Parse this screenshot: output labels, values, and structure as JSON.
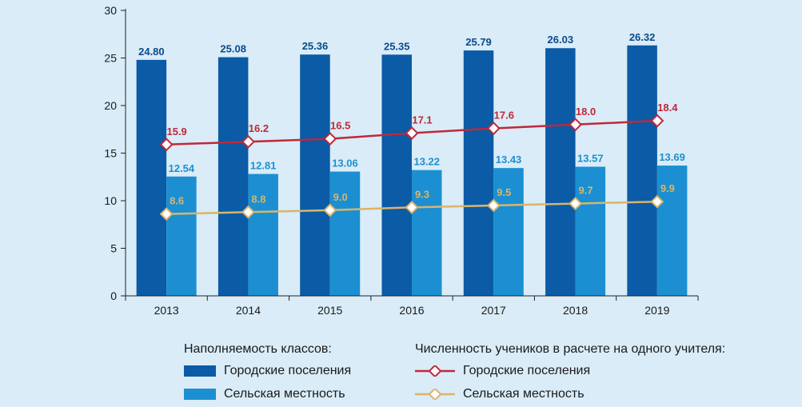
{
  "chart_data": {
    "type": "bar",
    "categories": [
      "2013",
      "2014",
      "2015",
      "2016",
      "2017",
      "2018",
      "2019"
    ],
    "ylim": [
      0,
      30
    ],
    "yticks": [
      0,
      5,
      10,
      15,
      20,
      25,
      30
    ],
    "grid": false,
    "bar_series": [
      {
        "name": "Городские поселения",
        "values": [
          24.8,
          25.08,
          25.36,
          25.35,
          25.79,
          26.03,
          26.32
        ],
        "labels": [
          "24.80",
          "25.08",
          "25.36",
          "25.35",
          "25.79",
          "26.03",
          "26.32"
        ],
        "color": "#0b5ba6",
        "label_color": "#0b4a8a"
      },
      {
        "name": "Сельская местность",
        "values": [
          12.54,
          12.81,
          13.06,
          13.22,
          13.43,
          13.57,
          13.69
        ],
        "labels": [
          "12.54",
          "12.81",
          "13.06",
          "13.22",
          "13.43",
          "13.57",
          "13.69"
        ],
        "color": "#1b8fd2",
        "label_color": "#1e8fd0"
      }
    ],
    "line_series": [
      {
        "name": "Городские поселения",
        "values": [
          15.9,
          16.2,
          16.5,
          17.1,
          17.6,
          18.0,
          18.4
        ],
        "labels": [
          "15.9",
          "16.2",
          "16.5",
          "17.1",
          "17.6",
          "18.0",
          "18.4"
        ],
        "color": "#c0283a"
      },
      {
        "name": "Сельская местность",
        "values": [
          8.6,
          8.8,
          9.0,
          9.3,
          9.5,
          9.7,
          9.9
        ],
        "labels": [
          "8.6",
          "8.8",
          "9.0",
          "9.3",
          "9.5",
          "9.7",
          "9.9"
        ],
        "color": "#d9b56a"
      }
    ]
  },
  "legend": {
    "bars_title": "Наполняемость классов:",
    "lines_title": "Численность учеников в расчете на одного учителя:",
    "bar_urban": "Городские поселения",
    "bar_rural": "Сельская местность",
    "line_urban": "Городские поселения",
    "line_rural": "Сельская местность"
  }
}
